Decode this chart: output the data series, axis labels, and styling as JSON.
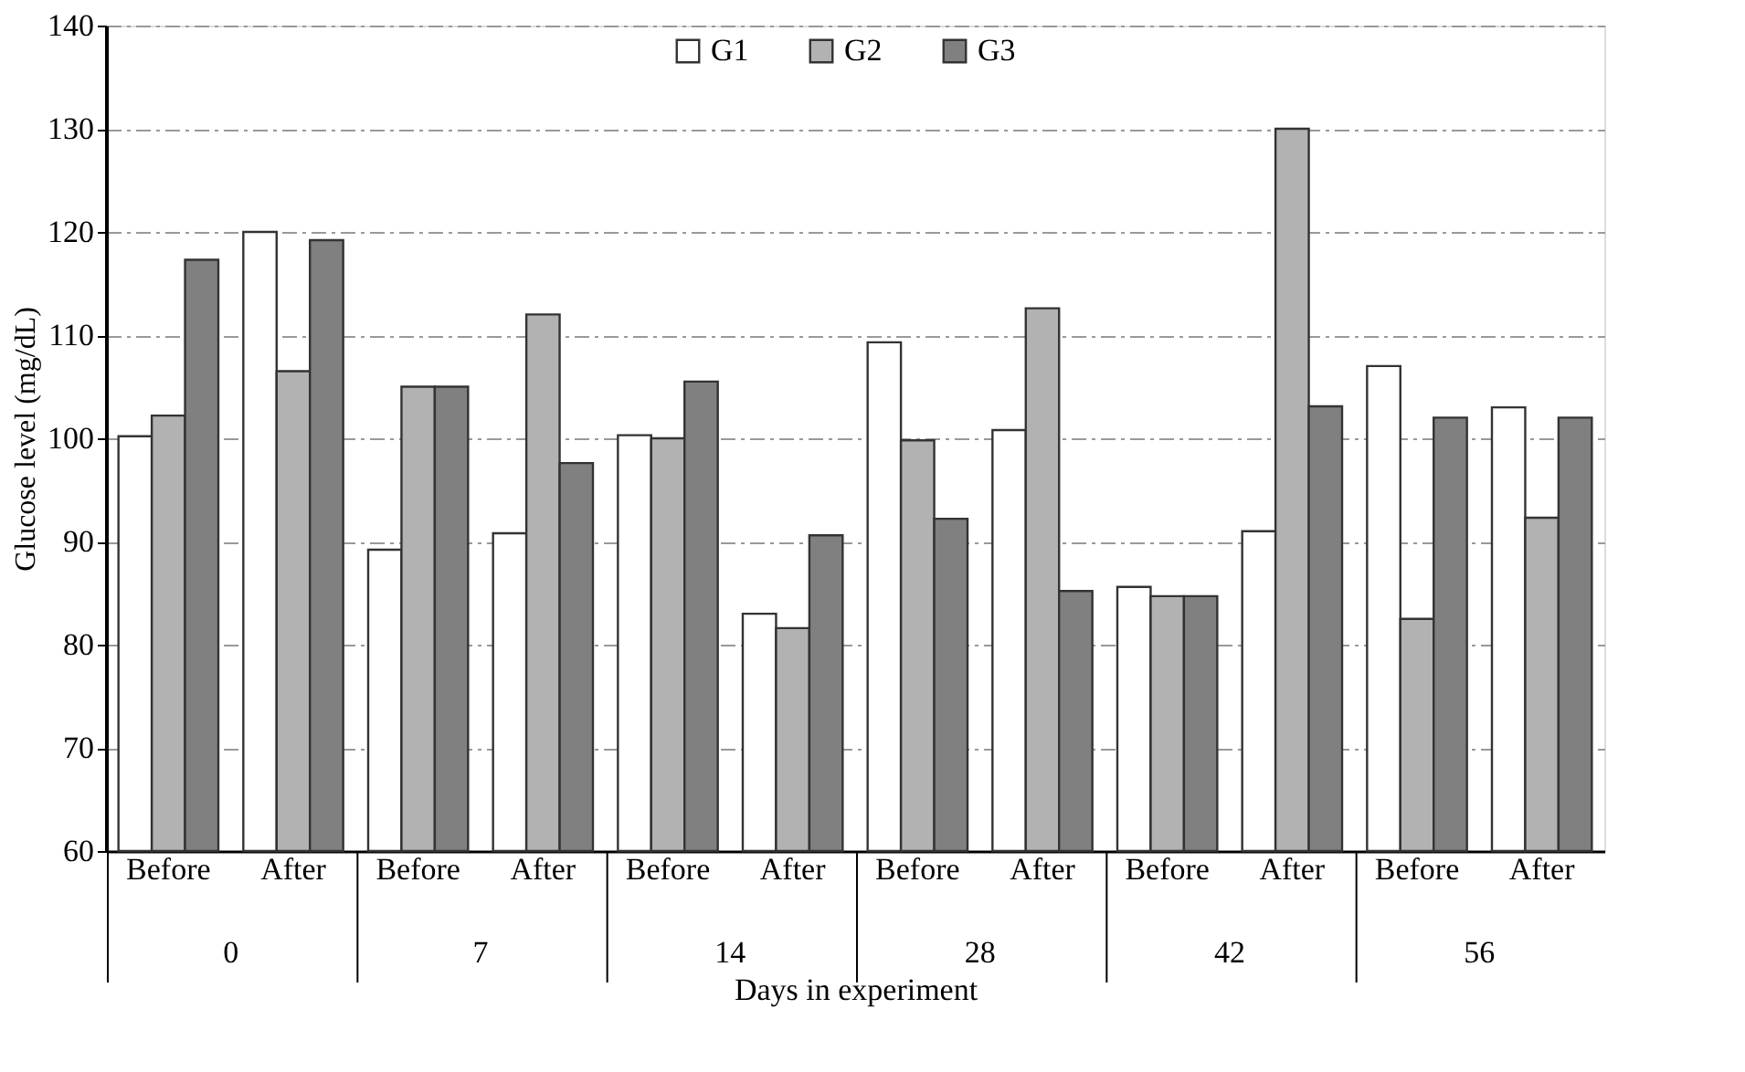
{
  "chart_data": {
    "type": "bar",
    "xlabel": "Days in experiment",
    "ylabel": "Glucose level  (mg/dL)",
    "categories": [
      "Before",
      "After",
      "Before",
      "After",
      "Before",
      "After",
      "Before",
      "After",
      "Before",
      "After",
      "Before",
      "After"
    ],
    "annotations": [
      "0",
      "7",
      "14",
      "28",
      "42",
      "56"
    ],
    "series": [
      {
        "name": "G1",
        "color": "#ffffff",
        "values": [
          100.2,
          120,
          89.2,
          90.8,
          100.3,
          83,
          109.3,
          100.8,
          85.6,
          91,
          107,
          103
        ]
      },
      {
        "name": "G2",
        "color": "#b2b2b2",
        "values": [
          102.2,
          106.5,
          105,
          112,
          100,
          81.6,
          99.8,
          112.6,
          84.7,
          130,
          82.5,
          92.3
        ]
      },
      {
        "name": "G3",
        "color": "#808080",
        "values": [
          117.3,
          119.2,
          105,
          97.6,
          105.5,
          90.6,
          92.2,
          85.2,
          84.7,
          103.1,
          102,
          102
        ]
      }
    ],
    "ylim": [
      60,
      140
    ],
    "yticks": [
      60,
      70,
      80,
      90,
      100,
      110,
      120,
      130,
      140
    ],
    "grid": "y",
    "legend": "top"
  }
}
